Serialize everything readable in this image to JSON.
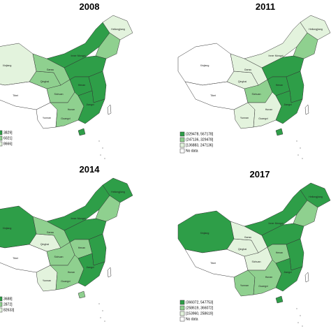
{
  "panels": [
    {
      "title": "2008",
      "legend": [
        "3829]",
        "6021]",
        "8666]"
      ],
      "legend_colors": [
        "#2e9e48",
        "#8fd08f",
        "#e3f3dd"
      ]
    },
    {
      "title": "2011",
      "legend": [
        "(329478, 567178]",
        "(247136, 329478]",
        "[136883, 247136]",
        "No data"
      ],
      "legend_colors": [
        "#2e9e48",
        "#8fd08f",
        "#e3f3dd",
        "#ffffff"
      ]
    },
    {
      "title": "2014",
      "legend": [
        "3688]",
        "2872]",
        "82633]"
      ],
      "legend_colors": [
        "#2e9e48",
        "#8fd08f",
        "#e3f3dd"
      ]
    },
    {
      "title": "2017",
      "legend": [
        "(366072, 547753]",
        "(258619, 366072]",
        "[153960, 258619]",
        "No data"
      ],
      "legend_colors": [
        "#2e9e48",
        "#8fd08f",
        "#e3f3dd",
        "#ffffff"
      ]
    }
  ],
  "province_labels": [
    "Xinjiang",
    "Tibet",
    "Qinghai",
    "Gansu",
    "Inner Mongol",
    "Heilongjiang",
    "Sichuan",
    "Henan",
    "Yunnan",
    "Hunan",
    "Guangxi",
    "Jiangxi"
  ]
}
